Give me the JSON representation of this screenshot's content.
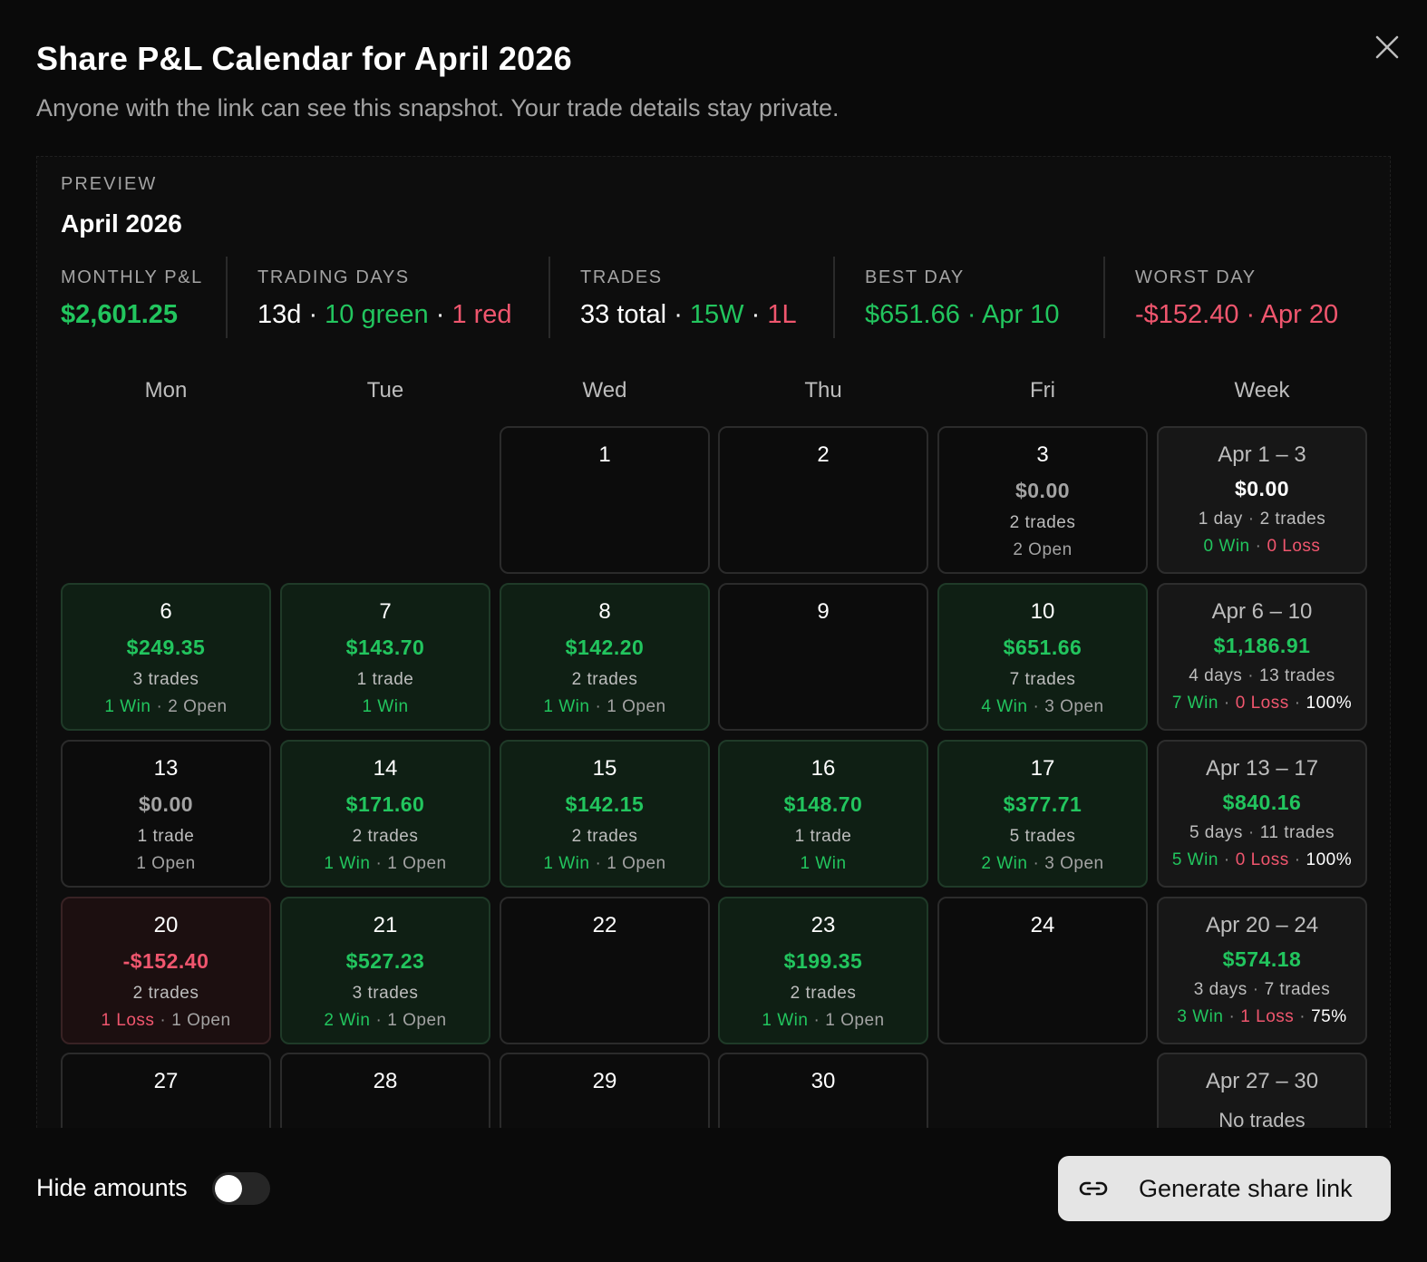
{
  "header": {
    "title": "Share P&L Calendar for April 2026",
    "subtitle": "Anyone with the link can see this snapshot. Your trade details stay private.",
    "close_icon": "close-icon"
  },
  "preview": {
    "label": "PREVIEW",
    "month": "April 2026",
    "stats": {
      "monthly_pl": {
        "label": "MONTHLY P&L",
        "value": "$2,601.25"
      },
      "trading_days": {
        "label": "TRADING DAYS",
        "days": "13d",
        "green": "10 green",
        "red": "1 red"
      },
      "trades": {
        "label": "TRADES",
        "total": "33 total",
        "wins": "15W",
        "losses": "1L"
      },
      "best_day": {
        "label": "BEST DAY",
        "amount": "$651.66",
        "date": "Apr 10"
      },
      "worst_day": {
        "label": "WORST DAY",
        "amount": "-$152.40",
        "date": "Apr 20"
      }
    },
    "weekdays": [
      "Mon",
      "Tue",
      "Wed",
      "Thu",
      "Fri",
      "Week"
    ],
    "days": {
      "d1": {
        "num": "1"
      },
      "d2": {
        "num": "2"
      },
      "d3": {
        "num": "3",
        "amount": "$0.00",
        "trades": "2 trades",
        "open": "2 Open"
      },
      "d6": {
        "num": "6",
        "amount": "$249.35",
        "trades": "3 trades",
        "win": "1 Win",
        "open": "2 Open"
      },
      "d7": {
        "num": "7",
        "amount": "$143.70",
        "trades": "1 trade",
        "win": "1 Win"
      },
      "d8": {
        "num": "8",
        "amount": "$142.20",
        "trades": "2 trades",
        "win": "1 Win",
        "open": "1 Open"
      },
      "d9": {
        "num": "9"
      },
      "d10": {
        "num": "10",
        "amount": "$651.66",
        "trades": "7 trades",
        "win": "4 Win",
        "open": "3 Open"
      },
      "d13": {
        "num": "13",
        "amount": "$0.00",
        "trades": "1 trade",
        "open": "1 Open"
      },
      "d14": {
        "num": "14",
        "amount": "$171.60",
        "trades": "2 trades",
        "win": "1 Win",
        "open": "1 Open"
      },
      "d15": {
        "num": "15",
        "amount": "$142.15",
        "trades": "2 trades",
        "win": "1 Win",
        "open": "1 Open"
      },
      "d16": {
        "num": "16",
        "amount": "$148.70",
        "trades": "1 trade",
        "win": "1 Win"
      },
      "d17": {
        "num": "17",
        "amount": "$377.71",
        "trades": "5 trades",
        "win": "2 Win",
        "open": "3 Open"
      },
      "d20": {
        "num": "20",
        "amount": "-$152.40",
        "trades": "2 trades",
        "loss": "1 Loss",
        "open": "1 Open"
      },
      "d21": {
        "num": "21",
        "amount": "$527.23",
        "trades": "3 trades",
        "win": "2 Win",
        "open": "1 Open"
      },
      "d22": {
        "num": "22"
      },
      "d23": {
        "num": "23",
        "amount": "$199.35",
        "trades": "2 trades",
        "win": "1 Win",
        "open": "1 Open"
      },
      "d24": {
        "num": "24"
      },
      "d27": {
        "num": "27"
      },
      "d28": {
        "num": "28"
      },
      "d29": {
        "num": "29"
      },
      "d30": {
        "num": "30"
      }
    },
    "weeks": {
      "w1": {
        "range": "Apr 1 – 3",
        "amount": "$0.00",
        "days": "1 day",
        "trades": "2 trades",
        "win": "0 Win",
        "loss": "0 Loss"
      },
      "w2": {
        "range": "Apr 6 – 10",
        "amount": "$1,186.91",
        "days": "4 days",
        "trades": "13 trades",
        "win": "7 Win",
        "loss": "0 Loss",
        "rate": "100%"
      },
      "w3": {
        "range": "Apr 13 – 17",
        "amount": "$840.16",
        "days": "5 days",
        "trades": "11 trades",
        "win": "5 Win",
        "loss": "0 Loss",
        "rate": "100%"
      },
      "w4": {
        "range": "Apr 20 – 24",
        "amount": "$574.18",
        "days": "3 days",
        "trades": "7 trades",
        "win": "3 Win",
        "loss": "1 Loss",
        "rate": "75%"
      },
      "w5": {
        "range": "Apr 27 – 30",
        "note": "No trades"
      }
    }
  },
  "footer": {
    "hide_amounts_label": "Hide amounts",
    "hide_amounts_on": false,
    "generate_label": "Generate share link",
    "generate_icon": "link-icon"
  }
}
